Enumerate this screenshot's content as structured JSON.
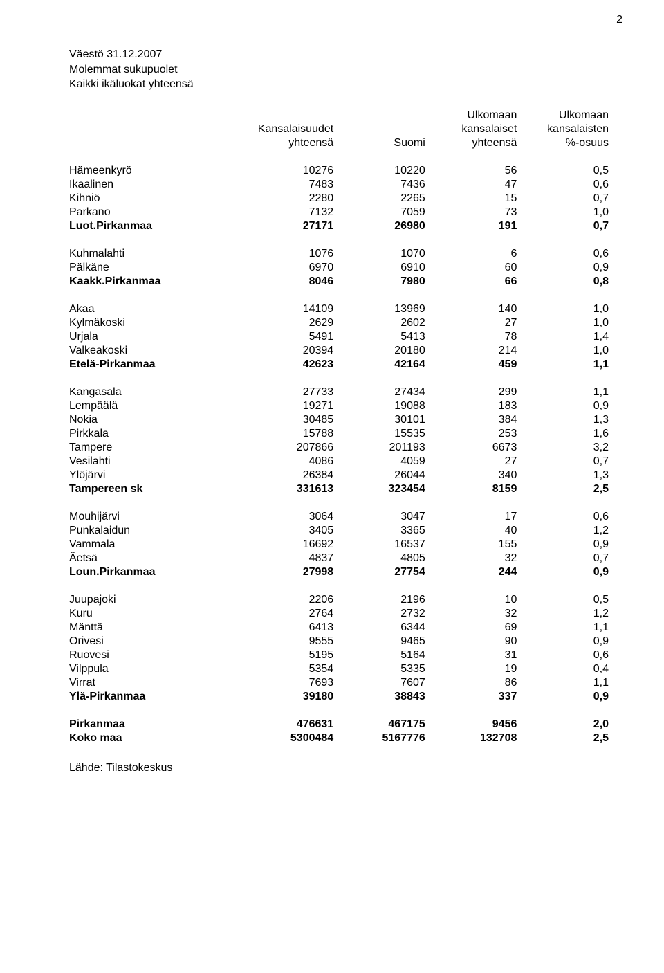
{
  "page_number": "2",
  "title_line1": "Väestö 31.12.2007",
  "title_line2": "Molemmat sukupuolet",
  "title_line3": "Kaikki ikäluokat yhteensä",
  "source": "Lähde: Tilastokeskus",
  "headers": {
    "col1_line1": "",
    "col1_line2": "",
    "col2_line1": "Kansalaisuudet",
    "col2_line2": "yhteensä",
    "col3_line1": "",
    "col3_line2": "Suomi",
    "col4_line0": "Ulkomaan",
    "col4_line1": "kansalaiset",
    "col4_line2": "yhteensä",
    "col5_line0": "Ulkomaan",
    "col5_line1": "kansalaisten",
    "col5_line2": "%-osuus"
  },
  "table": {
    "columns": [
      "label",
      "v1",
      "v2",
      "v3",
      "v4"
    ],
    "column_align": [
      "left",
      "right",
      "right",
      "right",
      "right"
    ],
    "font_size": 16,
    "background_color": "#ffffff",
    "text_color": "#000000",
    "groups": [
      {
        "rows": [
          {
            "label": "Hämeenkyrö",
            "v1": "10276",
            "v2": "10220",
            "v3": "56",
            "v4": "0,5"
          },
          {
            "label": "Ikaalinen",
            "v1": "7483",
            "v2": "7436",
            "v3": "47",
            "v4": "0,6"
          },
          {
            "label": "Kihniö",
            "v1": "2280",
            "v2": "2265",
            "v3": "15",
            "v4": "0,7"
          },
          {
            "label": "Parkano",
            "v1": "7132",
            "v2": "7059",
            "v3": "73",
            "v4": "1,0"
          },
          {
            "label": "Luot.Pirkanmaa",
            "v1": "27171",
            "v2": "26980",
            "v3": "191",
            "v4": "0,7",
            "bold": true
          }
        ]
      },
      {
        "rows": [
          {
            "label": "Kuhmalahti",
            "v1": "1076",
            "v2": "1070",
            "v3": "6",
            "v4": "0,6"
          },
          {
            "label": "Pälkäne",
            "v1": "6970",
            "v2": "6910",
            "v3": "60",
            "v4": "0,9"
          },
          {
            "label": "Kaakk.Pirkanmaa",
            "v1": "8046",
            "v2": "7980",
            "v3": "66",
            "v4": "0,8",
            "bold": true
          }
        ]
      },
      {
        "rows": [
          {
            "label": "Akaa",
            "v1": "14109",
            "v2": "13969",
            "v3": "140",
            "v4": "1,0"
          },
          {
            "label": "Kylmäkoski",
            "v1": "2629",
            "v2": "2602",
            "v3": "27",
            "v4": "1,0"
          },
          {
            "label": "Urjala",
            "v1": "5491",
            "v2": "5413",
            "v3": "78",
            "v4": "1,4"
          },
          {
            "label": "Valkeakoski",
            "v1": "20394",
            "v2": "20180",
            "v3": "214",
            "v4": "1,0"
          },
          {
            "label": "Etelä-Pirkanmaa",
            "v1": "42623",
            "v2": "42164",
            "v3": "459",
            "v4": "1,1",
            "bold": true
          }
        ]
      },
      {
        "rows": [
          {
            "label": "Kangasala",
            "v1": "27733",
            "v2": "27434",
            "v3": "299",
            "v4": "1,1"
          },
          {
            "label": "Lempäälä",
            "v1": "19271",
            "v2": "19088",
            "v3": "183",
            "v4": "0,9"
          },
          {
            "label": "Nokia",
            "v1": "30485",
            "v2": "30101",
            "v3": "384",
            "v4": "1,3"
          },
          {
            "label": "Pirkkala",
            "v1": "15788",
            "v2": "15535",
            "v3": "253",
            "v4": "1,6"
          },
          {
            "label": "Tampere",
            "v1": "207866",
            "v2": "201193",
            "v3": "6673",
            "v4": "3,2"
          },
          {
            "label": "Vesilahti",
            "v1": "4086",
            "v2": "4059",
            "v3": "27",
            "v4": "0,7"
          },
          {
            "label": "Ylöjärvi",
            "v1": "26384",
            "v2": "26044",
            "v3": "340",
            "v4": "1,3"
          },
          {
            "label": "Tampereen sk",
            "v1": "331613",
            "v2": "323454",
            "v3": "8159",
            "v4": "2,5",
            "bold": true
          }
        ]
      },
      {
        "rows": [
          {
            "label": "Mouhijärvi",
            "v1": "3064",
            "v2": "3047",
            "v3": "17",
            "v4": "0,6"
          },
          {
            "label": "Punkalaidun",
            "v1": "3405",
            "v2": "3365",
            "v3": "40",
            "v4": "1,2"
          },
          {
            "label": "Vammala",
            "v1": "16692",
            "v2": "16537",
            "v3": "155",
            "v4": "0,9"
          },
          {
            "label": "Äetsä",
            "v1": "4837",
            "v2": "4805",
            "v3": "32",
            "v4": "0,7"
          },
          {
            "label": "Loun.Pirkanmaa",
            "v1": "27998",
            "v2": "27754",
            "v3": "244",
            "v4": "0,9",
            "bold": true
          }
        ]
      },
      {
        "rows": [
          {
            "label": "Juupajoki",
            "v1": "2206",
            "v2": "2196",
            "v3": "10",
            "v4": "0,5"
          },
          {
            "label": "Kuru",
            "v1": "2764",
            "v2": "2732",
            "v3": "32",
            "v4": "1,2"
          },
          {
            "label": "Mänttä",
            "v1": "6413",
            "v2": "6344",
            "v3": "69",
            "v4": "1,1"
          },
          {
            "label": "Orivesi",
            "v1": "9555",
            "v2": "9465",
            "v3": "90",
            "v4": "0,9"
          },
          {
            "label": "Ruovesi",
            "v1": "5195",
            "v2": "5164",
            "v3": "31",
            "v4": "0,6"
          },
          {
            "label": "Vilppula",
            "v1": "5354",
            "v2": "5335",
            "v3": "19",
            "v4": "0,4"
          },
          {
            "label": "Virrat",
            "v1": "7693",
            "v2": "7607",
            "v3": "86",
            "v4": "1,1"
          },
          {
            "label": "Ylä-Pirkanmaa",
            "v1": "39180",
            "v2": "38843",
            "v3": "337",
            "v4": "0,9",
            "bold": true
          }
        ]
      },
      {
        "rows": [
          {
            "label": "Pirkanmaa",
            "v1": "476631",
            "v2": "467175",
            "v3": "9456",
            "v4": "2,0",
            "bold": true
          },
          {
            "label": "Koko maa",
            "v1": "5300484",
            "v2": "5167776",
            "v3": "132708",
            "v4": "2,5",
            "bold": true
          }
        ]
      }
    ]
  }
}
